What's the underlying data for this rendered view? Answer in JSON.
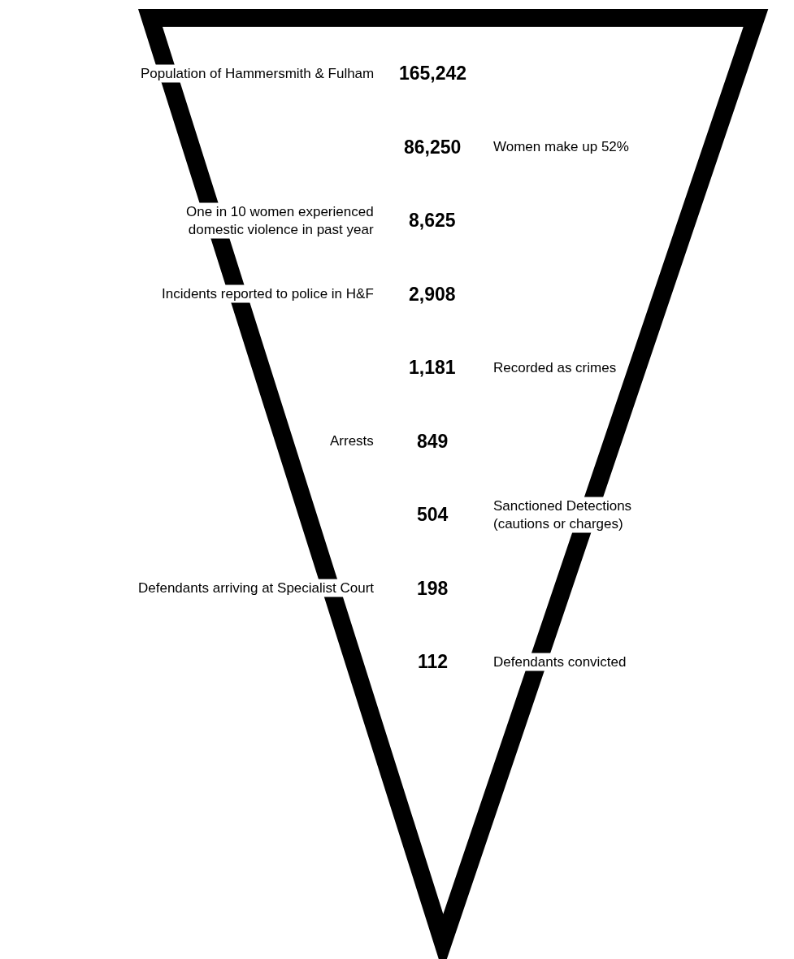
{
  "chart_data": {
    "type": "other",
    "categories": [
      "Population of Hammersmith & Fulham",
      "Women make up 52%",
      "One in 10 women experienced\ndomestic violence in past year",
      "Incidents reported to police in H&F",
      "Recorded as crimes",
      "Arrests",
      "Sanctioned Detections\n(cautions or charges)",
      "Defendants arriving at Specialist Court",
      "Defendants convicted"
    ],
    "series": [
      {
        "color": "#000000",
        "values": [
          165242,
          null,
          8625,
          2908,
          null,
          849,
          null,
          198,
          null
        ],
        "value_labels": [
          "165,242",
          null,
          "8,625",
          "2,908",
          null,
          "849",
          null,
          "198",
          null
        ]
      },
      {
        "color": "#000000",
        "values": [
          null,
          86250,
          null,
          null,
          1181,
          null,
          504,
          null,
          112
        ],
        "value_labels": [
          null,
          "86,250",
          null,
          null,
          "1,181",
          null,
          "504",
          null,
          "112"
        ]
      }
    ]
  }
}
